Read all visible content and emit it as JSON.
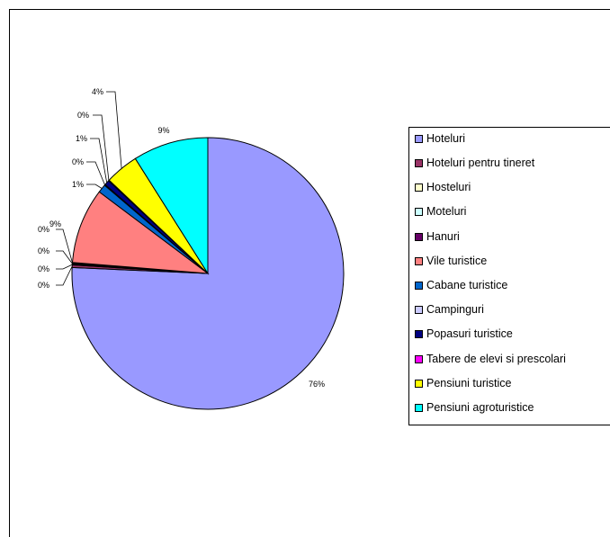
{
  "chart_data": {
    "type": "pie",
    "title": "",
    "legend_position": "right",
    "slices": [
      {
        "label": "Hoteluri",
        "value": 76,
        "value_label": "76%",
        "color": "#9999ff"
      },
      {
        "label": "Hoteluri pentru tineret",
        "value": 0.3,
        "value_label": "0%",
        "color": "#993366"
      },
      {
        "label": "Hosteluri",
        "value": 0.1,
        "value_label": "0%",
        "color": "#ffffcc"
      },
      {
        "label": "Moteluri",
        "value": 0.1,
        "value_label": "0%",
        "color": "#ccffff"
      },
      {
        "label": "Hanuri",
        "value": 0.1,
        "value_label": "0%",
        "color": "#660066"
      },
      {
        "label": "Vile turistice",
        "value": 9,
        "value_label": "9%",
        "color": "#ff8080"
      },
      {
        "label": "Cabane turistice",
        "value": 1,
        "value_label": "1%",
        "color": "#0066cc"
      },
      {
        "label": "Campinguri",
        "value": 0.1,
        "value_label": "0%",
        "color": "#ccccff"
      },
      {
        "label": "Popasuri turistice",
        "value": 0.6,
        "value_label": "1%",
        "color": "#000080"
      },
      {
        "label": "Tabere de elevi si prescolari",
        "value": 0.1,
        "value_label": "0%",
        "color": "#ff00ff"
      },
      {
        "label": "Pensiuni turistice",
        "value": 4,
        "value_label": "4%",
        "color": "#ffff00"
      },
      {
        "label": "Pensiuni agroturistice",
        "value": 9,
        "value_label": "9%",
        "color": "#00ffff"
      }
    ]
  }
}
